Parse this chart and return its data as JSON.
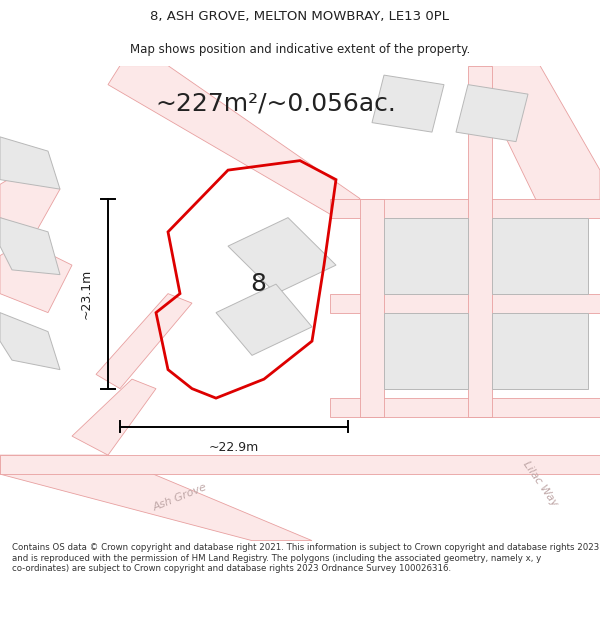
{
  "title_line1": "8, ASH GROVE, MELTON MOWBRAY, LE13 0PL",
  "title_line2": "Map shows position and indicative extent of the property.",
  "area_text": "~227m²/~0.056ac.",
  "label_number": "8",
  "dim_height": "~23.1m",
  "dim_width": "~22.9m",
  "footer_text": "Contains OS data © Crown copyright and database right 2021. This information is subject to Crown copyright and database rights 2023 and is reproduced with the permission of HM Land Registry. The polygons (including the associated geometry, namely x, y co-ordinates) are subject to Crown copyright and database rights 2023 Ordnance Survey 100026316.",
  "bg_color": "#ffffff",
  "map_bg": "#ffffff",
  "road_fill_color": "#fce8e8",
  "road_edge_color": "#e8a0a0",
  "plot_outline_color": "#dd0000",
  "neighbor_fill": "#e8e8e8",
  "neighbor_outline": "#b8b8b8",
  "road_label_color": "#c0a8a8",
  "dim_line_color": "#000000",
  "text_color": "#222222",
  "footer_bg": "#f0f0f0",
  "footer_color": "#333333",
  "title_fontsize": 9.5,
  "subtitle_fontsize": 8.5,
  "area_fontsize": 18,
  "label_fontsize": 18,
  "dim_fontsize": 9,
  "road_label_fontsize": 8,
  "footer_fontsize": 6.2
}
